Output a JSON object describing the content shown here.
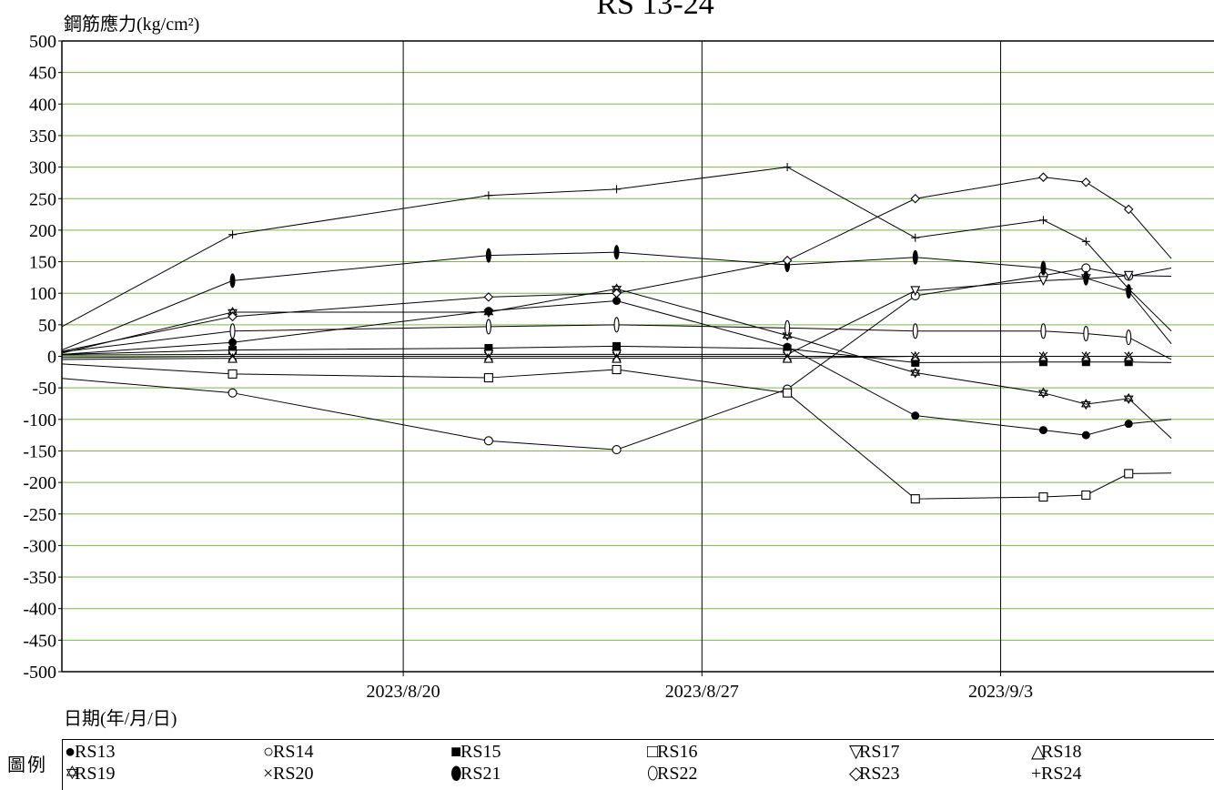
{
  "chart_data": {
    "type": "line",
    "title": "RS 13-24",
    "ylabel": "鋼筋應力(kg/cm²)",
    "xlabel": "日期(年/月/日)",
    "ylim": [
      -500,
      500
    ],
    "yticks": [
      500,
      450,
      400,
      350,
      300,
      250,
      200,
      150,
      100,
      50,
      0,
      -50,
      -100,
      -150,
      -200,
      -250,
      -300,
      -350,
      -400,
      -450,
      -500
    ],
    "xlim": [
      "2023-08-12",
      "2023-09-08"
    ],
    "xticks": [
      "2023/8/20",
      "2023/8/27",
      "2023/9/3"
    ],
    "x_dates": [
      "2023-08-12",
      "2023-08-16",
      "2023-08-22",
      "2023-08-25",
      "2023-08-29",
      "2023-09-01",
      "2023-09-04",
      "2023-09-05",
      "2023-09-06",
      "2023-09-07"
    ],
    "legend_title": "圖例",
    "series": [
      {
        "name": "RS13",
        "symbol": "●",
        "values": [
          3,
          22,
          72,
          88,
          15,
          -94,
          -117,
          -125,
          -107,
          -100
        ]
      },
      {
        "name": "RS14",
        "symbol": "○",
        "values": [
          -35,
          -58,
          -134,
          -148,
          -52,
          96,
          128,
          140,
          127,
          140
        ]
      },
      {
        "name": "RS15",
        "symbol": "■",
        "values": [
          3,
          10,
          13,
          16,
          12,
          -10,
          -9,
          -9,
          -9,
          -10
        ]
      },
      {
        "name": "RS16",
        "symbol": "□",
        "values": [
          -12,
          -28,
          -34,
          -21,
          -58,
          -226,
          -223,
          -220,
          -186,
          -185
        ]
      },
      {
        "name": "RS17",
        "symbol": "▽",
        "values": [
          2,
          3,
          3,
          3,
          3,
          104,
          120,
          123,
          128,
          127
        ]
      },
      {
        "name": "RS18",
        "symbol": "△",
        "values": [
          -5,
          -3,
          -3,
          -3,
          -3,
          0,
          0,
          0,
          0,
          0
        ]
      },
      {
        "name": "RS19",
        "symbol": "✡",
        "values": [
          5,
          70,
          70,
          107,
          33,
          -26,
          -58,
          -76,
          -67,
          -130
        ]
      },
      {
        "name": "RS20",
        "symbol": "×",
        "values": [
          -2,
          0,
          0,
          0,
          0,
          0,
          0,
          0,
          0,
          0
        ]
      },
      {
        "name": "RS21",
        "symbol": "⬮",
        "values": [
          10,
          120,
          160,
          165,
          145,
          157,
          140,
          124,
          103,
          20
        ]
      },
      {
        "name": "RS22",
        "symbol": "⬯",
        "values": [
          7,
          40,
          47,
          50,
          45,
          40,
          40,
          36,
          30,
          -5
        ]
      },
      {
        "name": "RS23",
        "symbol": "◇",
        "values": [
          8,
          63,
          94,
          100,
          152,
          250,
          284,
          276,
          233,
          155
        ]
      },
      {
        "name": "RS24",
        "symbol": "+",
        "values": [
          47,
          193,
          255,
          265,
          300,
          188,
          216,
          182,
          107,
          40
        ]
      }
    ],
    "grid": true,
    "legend_position": "bottom"
  },
  "colors": {
    "gridline": "#7ab648",
    "axis": "#000000",
    "series_line": "#000000"
  }
}
